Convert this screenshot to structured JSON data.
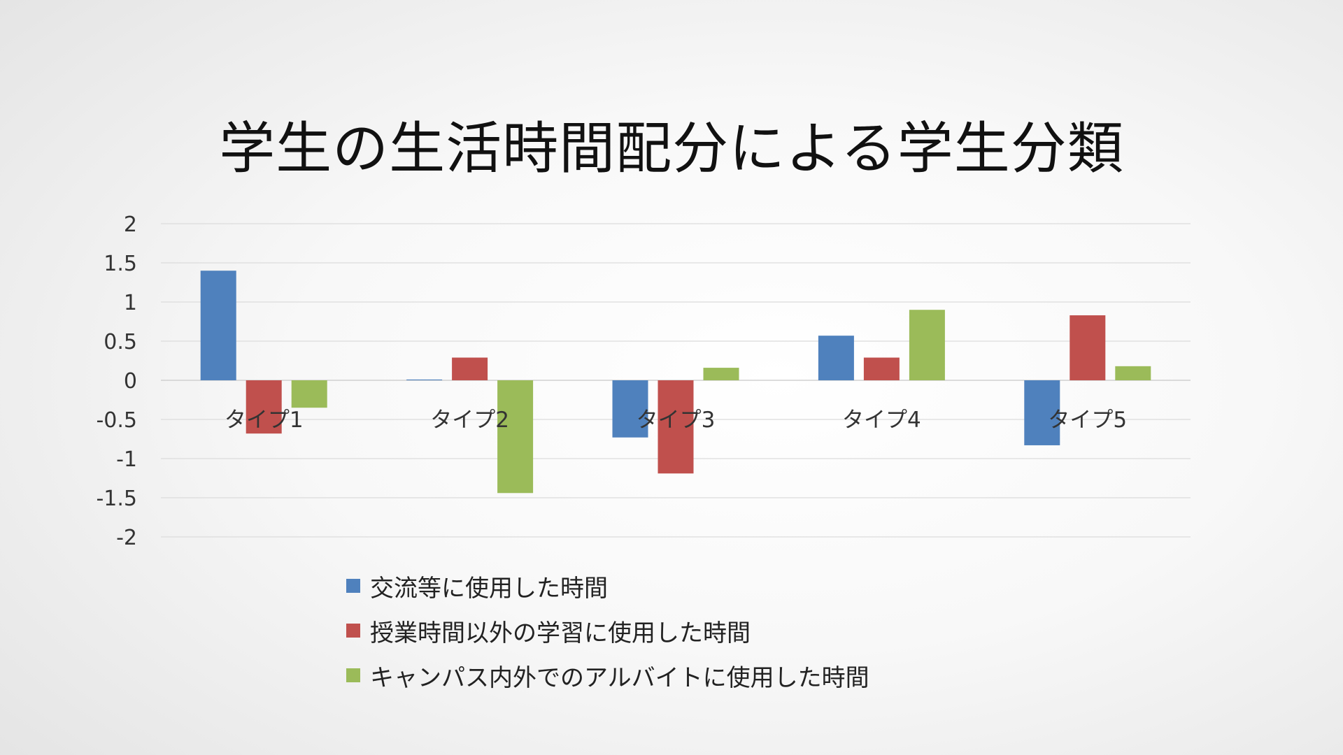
{
  "chart_data": {
    "type": "bar",
    "title": "学生の生活時間配分による学生分類",
    "categories": [
      "タイプ1",
      "タイプ2",
      "タイプ3",
      "タイプ4",
      "タイプ5"
    ],
    "series": [
      {
        "name": "交流等に使用した時間",
        "color": "#4F81BD",
        "values": [
          1.4,
          0.01,
          -0.73,
          0.57,
          -0.83
        ]
      },
      {
        "name": "授業時間以外の学習に使用した時間",
        "color": "#C0504D",
        "values": [
          -0.68,
          0.29,
          -1.19,
          0.29,
          0.83
        ]
      },
      {
        "name": "キャンパス内外でのアルバイトに使用した時間",
        "color": "#9BBB59",
        "values": [
          -0.35,
          -1.44,
          0.16,
          0.9,
          0.18
        ]
      }
    ],
    "y_ticks": [
      "2",
      "1.5",
      "1",
      "0.5",
      "0",
      "-0.5",
      "-1",
      "-1.5",
      "-2"
    ],
    "ylim": [
      -2,
      2
    ],
    "grid": true,
    "legend_position": "bottom"
  }
}
